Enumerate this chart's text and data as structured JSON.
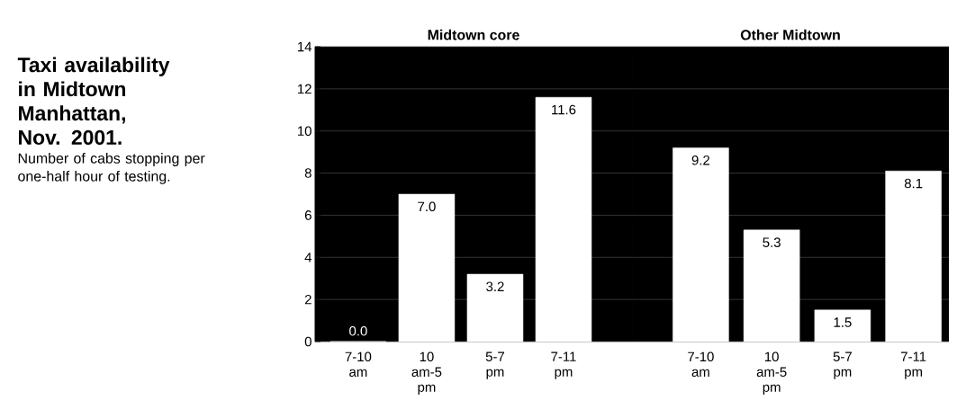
{
  "chart_data": [
    {
      "type": "bar",
      "title": "Midtown core",
      "categories": [
        "7-10 am",
        "10 am-5 pm",
        "5-7 pm",
        "7-11 pm"
      ],
      "values": [
        0.0,
        7.0,
        3.2,
        11.6
      ],
      "value_labels": [
        "0.0",
        "7.0",
        "3.2",
        "11.6"
      ],
      "color": "#ffffff",
      "ylim": [
        0,
        14
      ],
      "yticks": [
        0,
        2,
        4,
        6,
        8,
        10,
        12,
        14
      ],
      "grid": "y",
      "annotations": [
        "Taxi availability in Midtown Manhattan, Nov. 2001.",
        "Number of cabs stopping per one-half hour of testing."
      ]
    },
    {
      "type": "bar",
      "title": "Other Midtown",
      "categories": [
        "7-10 am",
        "10 am-5 pm",
        "5-7 pm",
        "7-11 pm"
      ],
      "values": [
        9.2,
        5.3,
        1.5,
        8.1
      ],
      "value_labels": [
        "9.2",
        "5.3",
        "1.5",
        "8.1"
      ],
      "color": "#ffffff",
      "ylim": [
        0,
        14
      ],
      "yticks": [
        0,
        2,
        4,
        6,
        8,
        10,
        12,
        14
      ],
      "grid": "y",
      "tick_labels": "x"
    }
  ]
}
